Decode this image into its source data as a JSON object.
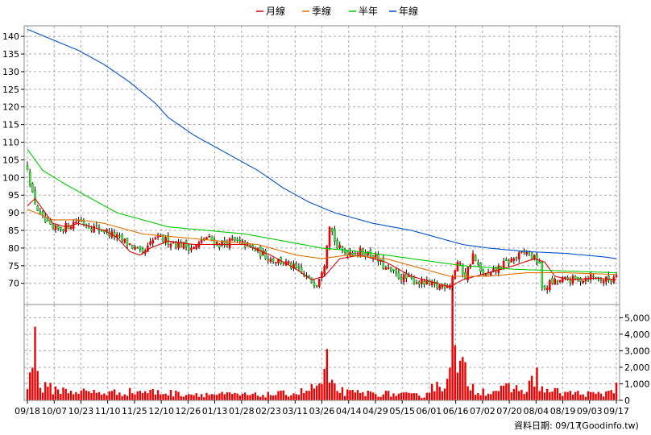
{
  "chart_data": {
    "type": "candlestick",
    "legend": [
      {
        "label": "月線",
        "color": "#e00000"
      },
      {
        "label": "季線",
        "color": "#e07000"
      },
      {
        "label": "半年",
        "color": "#00cc00"
      },
      {
        "label": "年線",
        "color": "#0050c8"
      }
    ],
    "price_axis": {
      "ylim": [
        64,
        143
      ],
      "ticks": [
        70,
        75,
        80,
        85,
        90,
        95,
        100,
        105,
        110,
        115,
        120,
        125,
        130,
        135,
        140
      ],
      "side": "left"
    },
    "volume_axis": {
      "ylim": [
        0,
        5800
      ],
      "ticks": [
        0,
        1000,
        2000,
        3000,
        4000,
        5000
      ],
      "tick_labels": [
        "0",
        "1,000",
        "2,000",
        "3,000",
        "4,000",
        "5,000"
      ],
      "side": "right"
    },
    "x_labels": [
      "09/18",
      "10/07",
      "10/23",
      "11/10",
      "11/25",
      "12/10",
      "12/26",
      "01/13",
      "01/28",
      "02/23",
      "03/11",
      "03/26",
      "04/14",
      "04/29",
      "05/15",
      "06/01",
      "06/16",
      "07/02",
      "07/20",
      "08/04",
      "08/19",
      "09/03",
      "09/17"
    ],
    "close_anchors": [
      [
        0,
        103
      ],
      [
        2,
        95
      ],
      [
        5,
        89
      ],
      [
        10,
        85
      ],
      [
        15,
        86
      ],
      [
        20,
        88
      ],
      [
        25,
        86
      ],
      [
        30,
        85
      ],
      [
        35,
        83
      ],
      [
        40,
        81
      ],
      [
        45,
        78
      ],
      [
        50,
        83
      ],
      [
        55,
        82
      ],
      [
        60,
        81
      ],
      [
        65,
        80
      ],
      [
        70,
        83
      ],
      [
        75,
        81
      ],
      [
        80,
        82
      ],
      [
        85,
        81
      ],
      [
        90,
        79
      ],
      [
        95,
        77
      ],
      [
        100,
        76
      ],
      [
        105,
        74
      ],
      [
        110,
        71
      ],
      [
        113,
        70
      ],
      [
        116,
        76
      ],
      [
        118,
        87
      ],
      [
        121,
        80
      ],
      [
        124,
        79
      ],
      [
        130,
        79
      ],
      [
        135,
        78
      ],
      [
        140,
        74
      ],
      [
        145,
        72
      ],
      [
        150,
        71
      ],
      [
        155,
        70
      ],
      [
        160,
        69
      ],
      [
        165,
        70
      ],
      [
        168,
        76
      ],
      [
        171,
        72
      ],
      [
        174,
        78
      ],
      [
        177,
        73
      ],
      [
        180,
        72
      ],
      [
        185,
        75
      ],
      [
        190,
        77
      ],
      [
        195,
        79
      ],
      [
        198,
        77
      ],
      [
        200,
        76
      ],
      [
        201,
        68
      ],
      [
        204,
        70
      ],
      [
        210,
        71
      ],
      [
        215,
        71
      ],
      [
        220,
        72
      ],
      [
        225,
        71
      ],
      [
        228,
        71
      ],
      [
        230,
        73
      ]
    ],
    "ma_month": [
      [
        0,
        92
      ],
      [
        3,
        94
      ],
      [
        6,
        91
      ],
      [
        10,
        87
      ],
      [
        15,
        86
      ],
      [
        20,
        87
      ],
      [
        25,
        86
      ],
      [
        30,
        85
      ],
      [
        35,
        83
      ],
      [
        40,
        79
      ],
      [
        44,
        78
      ],
      [
        48,
        80
      ],
      [
        55,
        82
      ],
      [
        65,
        81
      ],
      [
        75,
        81
      ],
      [
        85,
        81
      ],
      [
        95,
        78
      ],
      [
        105,
        74
      ],
      [
        111,
        71
      ],
      [
        116,
        72
      ],
      [
        122,
        77
      ],
      [
        130,
        78
      ],
      [
        140,
        76
      ],
      [
        150,
        72
      ],
      [
        160,
        70
      ],
      [
        165,
        69
      ],
      [
        170,
        71
      ],
      [
        180,
        73
      ],
      [
        190,
        75
      ],
      [
        198,
        77
      ],
      [
        202,
        76
      ],
      [
        206,
        72
      ],
      [
        212,
        71
      ],
      [
        222,
        71.5
      ],
      [
        230,
        71
      ]
    ],
    "ma_quarter": [
      [
        0,
        91
      ],
      [
        10,
        88
      ],
      [
        20,
        88
      ],
      [
        30,
        87
      ],
      [
        45,
        84
      ],
      [
        60,
        83
      ],
      [
        75,
        82
      ],
      [
        90,
        81
      ],
      [
        105,
        78
      ],
      [
        115,
        77
      ],
      [
        125,
        78
      ],
      [
        140,
        77
      ],
      [
        155,
        74
      ],
      [
        165,
        72
      ],
      [
        180,
        72
      ],
      [
        195,
        73
      ],
      [
        210,
        73
      ],
      [
        230,
        72.5
      ]
    ],
    "ma_half": [
      [
        0,
        108
      ],
      [
        6,
        102
      ],
      [
        15,
        98
      ],
      [
        25,
        94
      ],
      [
        35,
        90
      ],
      [
        45,
        88
      ],
      [
        55,
        86
      ],
      [
        70,
        85
      ],
      [
        85,
        84
      ],
      [
        100,
        82
      ],
      [
        115,
        80
      ],
      [
        130,
        79
      ],
      [
        150,
        77
      ],
      [
        170,
        75
      ],
      [
        190,
        74
      ],
      [
        210,
        73.5
      ],
      [
        230,
        73
      ]
    ],
    "ma_year": [
      [
        0,
        142
      ],
      [
        10,
        139
      ],
      [
        20,
        136
      ],
      [
        30,
        132
      ],
      [
        40,
        127
      ],
      [
        50,
        121
      ],
      [
        55,
        117
      ],
      [
        65,
        112
      ],
      [
        75,
        108
      ],
      [
        90,
        102
      ],
      [
        100,
        97
      ],
      [
        110,
        93
      ],
      [
        120,
        90
      ],
      [
        135,
        87
      ],
      [
        150,
        85
      ],
      [
        160,
        83
      ],
      [
        170,
        81
      ],
      [
        180,
        80
      ],
      [
        195,
        79
      ],
      [
        210,
        78.5
      ],
      [
        225,
        77.5
      ],
      [
        230,
        77
      ]
    ],
    "volume_anchors": [
      [
        0,
        1400
      ],
      [
        2,
        2600
      ],
      [
        3,
        3800
      ],
      [
        4,
        2000
      ],
      [
        5,
        900
      ],
      [
        15,
        650
      ],
      [
        30,
        500
      ],
      [
        45,
        600
      ],
      [
        60,
        450
      ],
      [
        75,
        400
      ],
      [
        90,
        350
      ],
      [
        105,
        500
      ],
      [
        110,
        700
      ],
      [
        115,
        1100
      ],
      [
        117,
        2400
      ],
      [
        118,
        1000
      ],
      [
        125,
        500
      ],
      [
        140,
        450
      ],
      [
        155,
        300
      ],
      [
        158,
        1000
      ],
      [
        162,
        800
      ],
      [
        164,
        2000
      ],
      [
        166,
        5700
      ],
      [
        167,
        3200
      ],
      [
        168,
        1800
      ],
      [
        170,
        2200
      ],
      [
        172,
        1300
      ],
      [
        175,
        700
      ],
      [
        180,
        600
      ],
      [
        188,
        800
      ],
      [
        195,
        700
      ],
      [
        199,
        1700
      ],
      [
        201,
        700
      ],
      [
        210,
        500
      ],
      [
        225,
        400
      ],
      [
        229,
        900
      ],
      [
        230,
        1100
      ]
    ],
    "footer": {
      "label": "資料日期: 09/17",
      "source": "(Goodinfo.tw)"
    }
  }
}
